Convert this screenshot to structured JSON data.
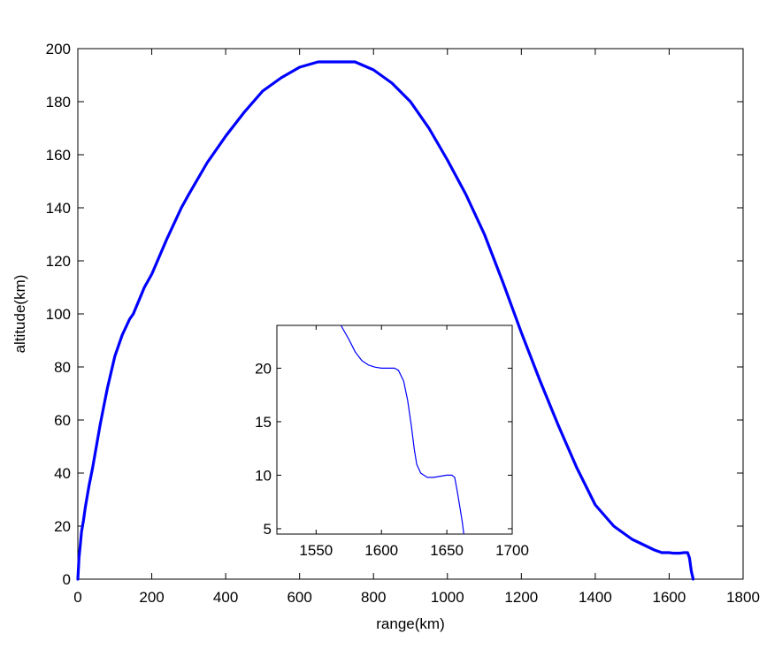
{
  "chart_data": [
    {
      "type": "line",
      "title": "",
      "xlabel": "range(km)",
      "ylabel": "altitude(km)",
      "xlim": [
        0,
        1800
      ],
      "ylim": [
        0,
        200
      ],
      "xticks": [
        0,
        200,
        400,
        600,
        800,
        1000,
        1200,
        1400,
        1600,
        1800
      ],
      "yticks": [
        0,
        20,
        40,
        60,
        80,
        100,
        120,
        140,
        160,
        180,
        200
      ],
      "xtick_labels": [
        "0",
        "200",
        "400",
        "600",
        "800",
        "1000",
        "1200",
        "1400",
        "1600",
        "1800"
      ],
      "ytick_labels": [
        "0",
        "20",
        "40",
        "60",
        "80",
        "100",
        "120",
        "140",
        "160",
        "180",
        "200"
      ],
      "grid": false,
      "color": "#0000ff",
      "series": [
        {
          "x": [
            0,
            3,
            6,
            10,
            15,
            20,
            30,
            40,
            50,
            60,
            70,
            80,
            90,
            100,
            120,
            140,
            150,
            180,
            200,
            240,
            280,
            300,
            350,
            400,
            450,
            500,
            550,
            600,
            650,
            700,
            750,
            800,
            850,
            900,
            950,
            1000,
            1050,
            1100,
            1150,
            1200,
            1250,
            1300,
            1350,
            1400,
            1450,
            1470,
            1500,
            1530,
            1560,
            1570,
            1580,
            1600,
            1610,
            1620,
            1630,
            1640,
            1650,
            1655,
            1660,
            1665
          ],
          "y": [
            0,
            8,
            12,
            18,
            22,
            27,
            35,
            42,
            50,
            58,
            65,
            72,
            78,
            84,
            92,
            98,
            100,
            110,
            115,
            128,
            140,
            145,
            157,
            167,
            176,
            184,
            189,
            193,
            195,
            195,
            195,
            192,
            187,
            180,
            170,
            158,
            145,
            130,
            112,
            93,
            75,
            58,
            42,
            28,
            20,
            18,
            15,
            13,
            11,
            10.5,
            10,
            10,
            9.8,
            9.8,
            9.8,
            10,
            10,
            8,
            3,
            0
          ]
        }
      ]
    },
    {
      "type": "line",
      "title": "",
      "xlabel": "",
      "ylabel": "",
      "xlim": [
        1520,
        1700
      ],
      "ylim": [
        4.5,
        24
      ],
      "xticks": [
        1550,
        1600,
        1650,
        1700
      ],
      "yticks": [
        5,
        10,
        15,
        20
      ],
      "xtick_labels": [
        "1550",
        "1600",
        "1650",
        "1700"
      ],
      "ytick_labels": [
        "5",
        "10",
        "15",
        "20"
      ],
      "grid": false,
      "color": "#0000ff",
      "series": [
        {
          "x": [
            1569,
            1575,
            1580,
            1585,
            1590,
            1595,
            1600,
            1610,
            1613,
            1617,
            1620,
            1623,
            1625,
            1627,
            1630,
            1635,
            1640,
            1645,
            1650,
            1654,
            1656,
            1658,
            1660,
            1662,
            1663
          ],
          "y": [
            24,
            22.7,
            21.5,
            20.7,
            20.3,
            20.1,
            20.0,
            20.0,
            19.8,
            18.8,
            17,
            14.5,
            12.5,
            11,
            10.2,
            9.8,
            9.8,
            9.9,
            10.0,
            10.0,
            9.8,
            8.5,
            7,
            5.5,
            4.5
          ]
        }
      ]
    }
  ]
}
